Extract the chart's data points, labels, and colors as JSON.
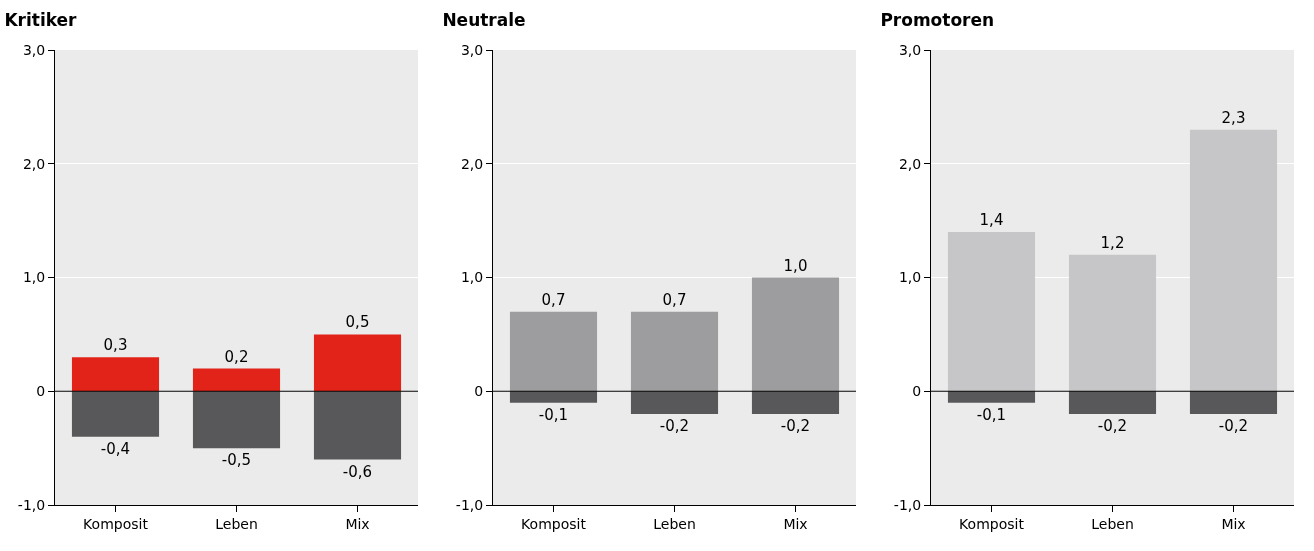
{
  "chart_data": [
    {
      "type": "bar",
      "title": "Kritiker",
      "ref_lines": [
        {
          "axis": "y",
          "value": 0,
          "color": "#000000"
        }
      ],
      "categories": [
        "Komposit",
        "Leben",
        "Mix"
      ],
      "stacked": true,
      "ylim": [
        -1,
        3
      ],
      "yticks": [
        {
          "value": -1,
          "label": "-1,0"
        },
        0,
        {
          "value": 1,
          "label": "1,0"
        },
        {
          "value": 2,
          "label": "2,0"
        },
        {
          "value": 3,
          "label": "3,0"
        }
      ],
      "grid": "y",
      "series": [
        {
          "color": "#e2231a",
          "values": [
            0.3,
            0.2,
            0.5
          ],
          "value_labels": [
            "0,3",
            "0,2",
            "0,5"
          ]
        },
        {
          "color": "#58585a",
          "values": [
            -0.4,
            -0.5,
            -0.6
          ],
          "value_labels": [
            "-0,4",
            "-0,5",
            "-0,6"
          ]
        }
      ]
    },
    {
      "type": "bar",
      "title": "Neutrale",
      "ref_lines": [
        {
          "axis": "y",
          "value": 0,
          "color": "#000000"
        }
      ],
      "categories": [
        "Komposit",
        "Leben",
        "Mix"
      ],
      "stacked": true,
      "ylim": [
        -1,
        3
      ],
      "yticks": [
        {
          "value": -1,
          "label": "-1,0"
        },
        0,
        {
          "value": 1,
          "label": "1,0"
        },
        {
          "value": 2,
          "label": "2,0"
        },
        {
          "value": 3,
          "label": "3,0"
        }
      ],
      "grid": "y",
      "series": [
        {
          "color": "#9d9d9f",
          "values": [
            0.7,
            0.7,
            1.0
          ],
          "value_labels": [
            "0,7",
            "0,7",
            "1,0"
          ]
        },
        {
          "color": "#58585a",
          "values": [
            -0.1,
            -0.2,
            -0.2
          ],
          "value_labels": [
            "-0,1",
            "-0,2",
            "-0,2"
          ]
        }
      ]
    },
    {
      "type": "bar",
      "title": "Promotoren",
      "ref_lines": [
        {
          "axis": "y",
          "value": 0,
          "color": "#000000"
        }
      ],
      "categories": [
        "Komposit",
        "Leben",
        "Mix"
      ],
      "stacked": true,
      "ylim": [
        -1,
        3
      ],
      "yticks": [
        {
          "value": -1,
          "label": "-1,0"
        },
        0,
        {
          "value": 1,
          "label": "1,0"
        },
        {
          "value": 2,
          "label": "2,0"
        },
        {
          "value": 3,
          "label": "3,0"
        }
      ],
      "grid": "y",
      "series": [
        {
          "color": "#c6c6c8",
          "values": [
            1.4,
            1.2,
            2.3
          ],
          "value_labels": [
            "1,4",
            "1,2",
            "2,3"
          ]
        },
        {
          "color": "#58585a",
          "values": [
            -0.1,
            -0.2,
            -0.2
          ],
          "value_labels": [
            "-0,1",
            "-0,2",
            "-0,2"
          ]
        }
      ]
    }
  ]
}
